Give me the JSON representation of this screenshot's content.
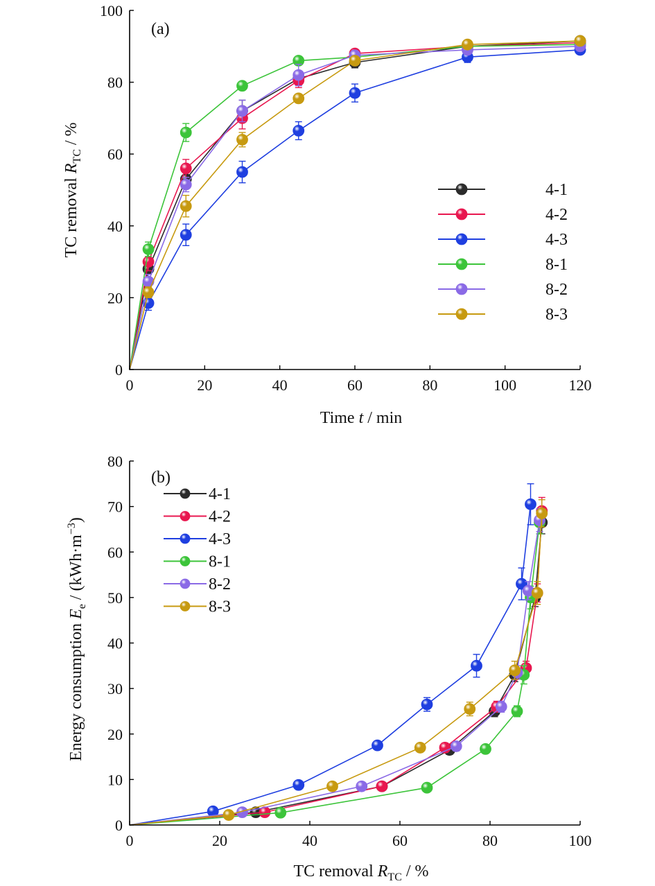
{
  "chart_data": [
    {
      "type": "line",
      "panel_label": "(a)",
      "xlabel": {
        "prefix": "Time ",
        "var": "t",
        "suffix": " / min"
      },
      "ylabel": {
        "prefix": "TC removal ",
        "var": "R",
        "sub": "TC",
        "suffix": " / %"
      },
      "xlim": [
        0,
        120
      ],
      "ylim": [
        0,
        100
      ],
      "xticks": [
        0,
        20,
        40,
        60,
        80,
        100,
        120
      ],
      "yticks": [
        0,
        20,
        40,
        60,
        80,
        100
      ],
      "legend_placement": "center-right",
      "series": [
        {
          "name": "4-1",
          "color": "#2b2b2b",
          "x": [
            0,
            5,
            15,
            30,
            45,
            60,
            90,
            120
          ],
          "y": [
            0,
            28,
            53,
            72,
            81,
            85.5,
            90,
            91.5
          ],
          "err": [
            0,
            1.5,
            2,
            3,
            1.5,
            1.5,
            1,
            1
          ]
        },
        {
          "name": "4-2",
          "color": "#e8174f",
          "x": [
            0,
            5,
            15,
            30,
            45,
            60,
            90,
            120
          ],
          "y": [
            0,
            30,
            56,
            70,
            80.5,
            88,
            90,
            91
          ],
          "err": [
            0,
            2.5,
            2.5,
            3,
            2,
            1,
            1,
            1
          ]
        },
        {
          "name": "4-3",
          "color": "#1f3fe0",
          "x": [
            0,
            5,
            15,
            30,
            45,
            60,
            90,
            120
          ],
          "y": [
            0,
            18.5,
            37.5,
            55,
            66.5,
            77,
            87,
            89
          ],
          "err": [
            0,
            2,
            3,
            3,
            2.5,
            2.5,
            1.5,
            1
          ]
        },
        {
          "name": "8-1",
          "color": "#3cc43a",
          "x": [
            0,
            5,
            15,
            30,
            45,
            60,
            90,
            120
          ],
          "y": [
            0,
            33.5,
            66,
            79,
            86,
            87,
            90,
            90.5
          ],
          "err": [
            0,
            2,
            2.5,
            1,
            1,
            1,
            1,
            1
          ]
        },
        {
          "name": "8-2",
          "color": "#8a6ae6",
          "x": [
            0,
            5,
            15,
            30,
            45,
            60,
            90,
            120
          ],
          "y": [
            0,
            24.5,
            51.5,
            72,
            82,
            87.5,
            89,
            90
          ],
          "err": [
            0,
            2,
            2,
            3,
            3,
            1,
            1,
            1
          ]
        },
        {
          "name": "8-3",
          "color": "#c79a10",
          "x": [
            0,
            5,
            15,
            30,
            45,
            60,
            90,
            120
          ],
          "y": [
            0,
            21.5,
            45.5,
            64,
            75.5,
            86,
            90.5,
            91.5
          ],
          "err": [
            0,
            1.5,
            3,
            2,
            1,
            1,
            1,
            1
          ]
        }
      ]
    },
    {
      "type": "line",
      "panel_label": "(b)",
      "xlabel": {
        "prefix": "TC removal ",
        "var": "R",
        "sub": "TC",
        "suffix": " / %"
      },
      "ylabel": {
        "prefix": "Energy consumption ",
        "var": "E",
        "sub": "e",
        "suffix": " / (kWh·m",
        "sup": "−3",
        "close": ")"
      },
      "xlim": [
        0,
        100
      ],
      "ylim": [
        0,
        80
      ],
      "xticks": [
        0,
        20,
        40,
        60,
        80,
        100
      ],
      "yticks": [
        0,
        10,
        20,
        30,
        40,
        50,
        60,
        70,
        80
      ],
      "legend_placement": "top-left",
      "series": [
        {
          "name": "4-1",
          "color": "#2b2b2b",
          "x": [
            0,
            28,
            56,
            71,
            81,
            85.5,
            90,
            91.5
          ],
          "y": [
            0,
            2.8,
            8.5,
            16.5,
            25,
            33,
            50,
            66.5
          ],
          "err": [
            0,
            0.3,
            0.5,
            1,
            1.2,
            1.5,
            2,
            2.5
          ]
        },
        {
          "name": "4-2",
          "color": "#e8174f",
          "x": [
            0,
            30,
            56,
            70,
            81.5,
            88,
            90.5,
            91.5
          ],
          "y": [
            0,
            2.8,
            8.5,
            17,
            26,
            34.5,
            51,
            69
          ],
          "err": [
            0,
            0.3,
            0.5,
            1,
            1.2,
            1.5,
            2,
            3
          ]
        },
        {
          "name": "4-3",
          "color": "#1f3fe0",
          "x": [
            0,
            18.5,
            37.5,
            55,
            66,
            77,
            87,
            89
          ],
          "y": [
            0,
            3,
            8.8,
            17.5,
            26.5,
            35,
            53,
            70.5
          ],
          "err": [
            0,
            0.3,
            0.5,
            0.8,
            1.5,
            2.5,
            3.5,
            4.5
          ]
        },
        {
          "name": "8-1",
          "color": "#3cc43a",
          "x": [
            0,
            33.5,
            66,
            79,
            86,
            87.5,
            89,
            91
          ],
          "y": [
            0,
            2.7,
            8.2,
            16.7,
            25,
            33,
            50,
            66.5
          ],
          "err": [
            0,
            0.3,
            0.5,
            0.8,
            1.2,
            2,
            2.5,
            2.5
          ]
        },
        {
          "name": "8-2",
          "color": "#8a6ae6",
          "x": [
            0,
            25,
            51.5,
            72.5,
            82.5,
            86,
            88.5,
            91
          ],
          "y": [
            0,
            2.8,
            8.5,
            17.3,
            26,
            33.5,
            51.5,
            67
          ],
          "err": [
            0,
            0.3,
            0.5,
            1,
            1.2,
            1.5,
            2,
            2.5
          ]
        },
        {
          "name": "8-3",
          "color": "#c79a10",
          "x": [
            0,
            22,
            45,
            64.5,
            75.5,
            85.5,
            90.5,
            91.5
          ],
          "y": [
            0,
            2.2,
            8.5,
            17,
            25.5,
            34,
            51,
            68.5
          ],
          "err": [
            0,
            0.3,
            0.5,
            0.8,
            1.5,
            2,
            2.5,
            3
          ]
        }
      ]
    }
  ]
}
